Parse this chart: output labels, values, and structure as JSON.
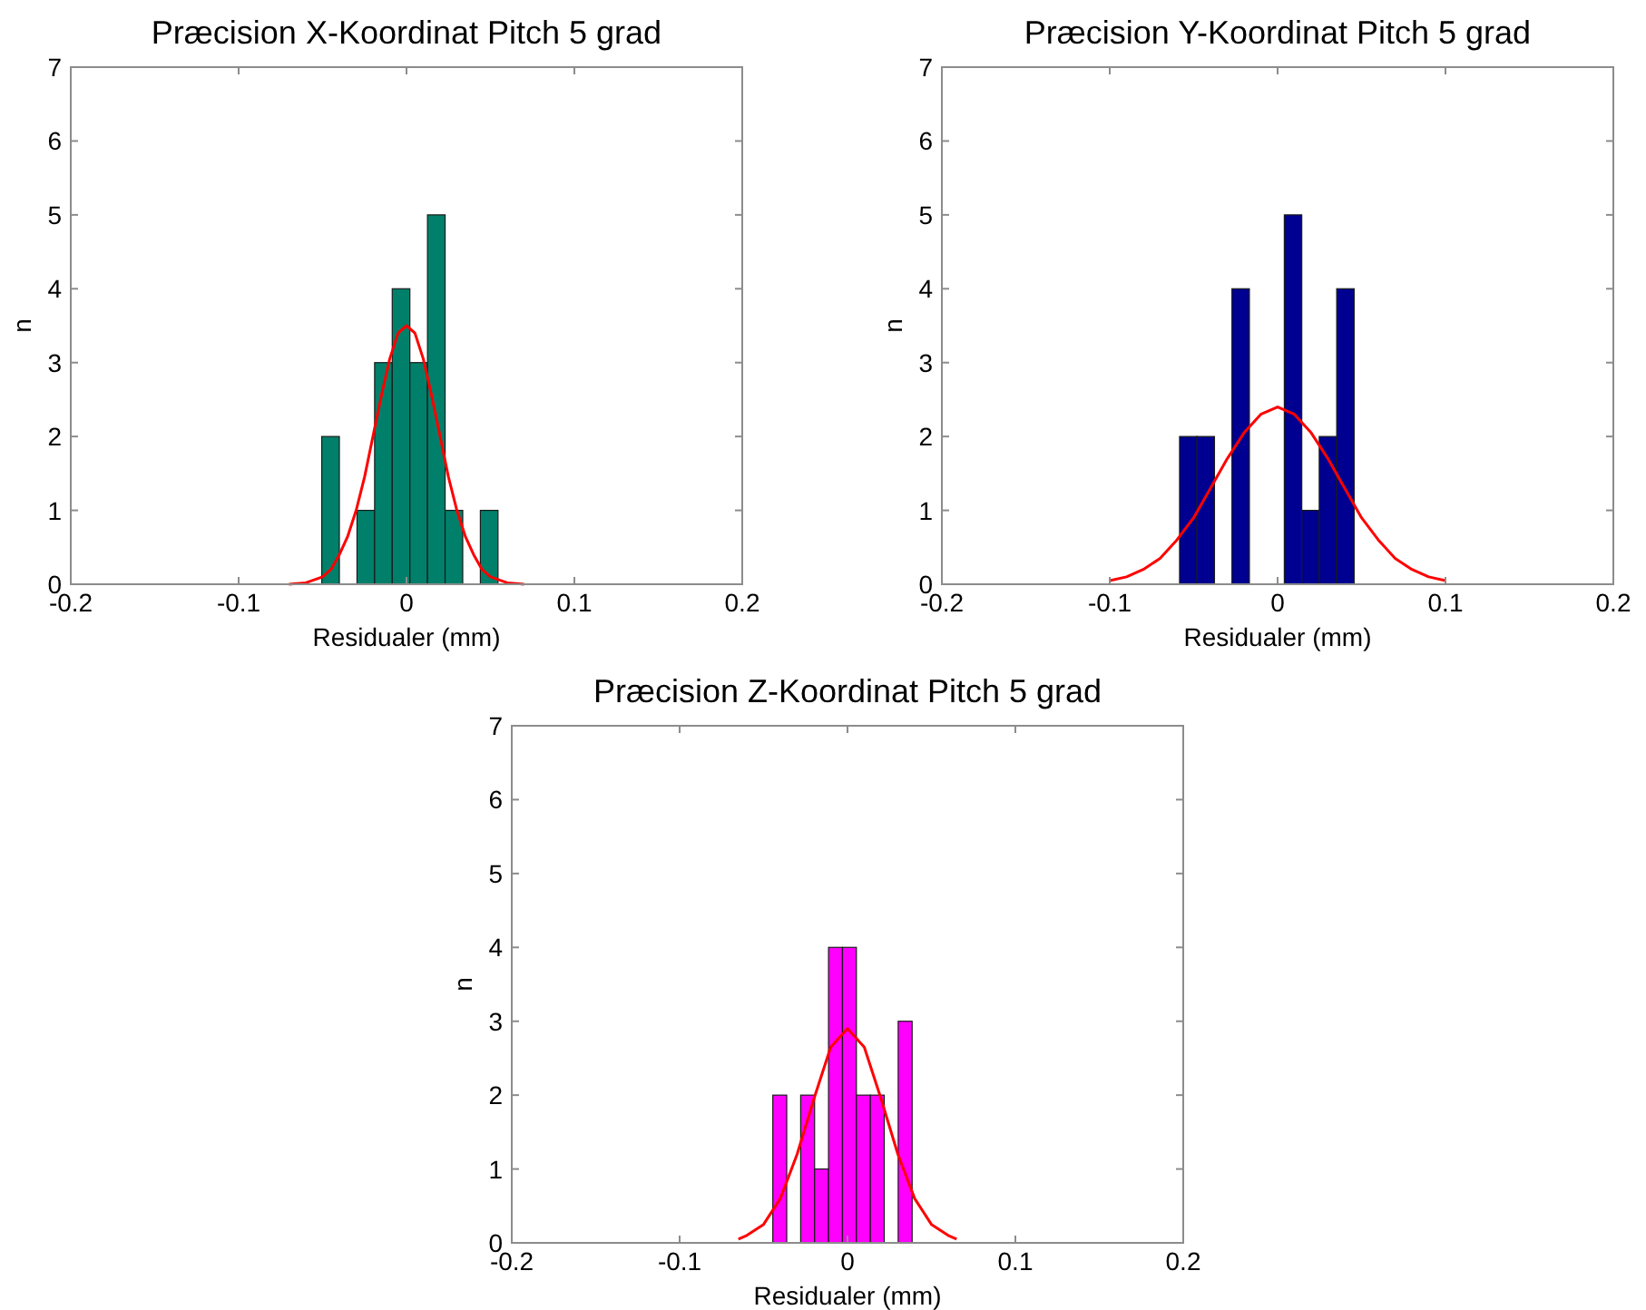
{
  "chart_data": [
    {
      "type": "histogram",
      "title": "Præcision X-Koordinat Pitch 5 grad",
      "xlabel": "Residualer (mm)",
      "ylabel": "n",
      "bins": [
        -0.0505,
        -0.04,
        -0.0295,
        -0.019,
        -0.0085,
        0.002,
        0.0125,
        0.023,
        0.0335,
        0.044,
        0.0545
      ],
      "values": [
        2,
        0,
        1,
        3,
        4,
        3,
        5,
        1,
        0,
        1
      ],
      "color": "#00806a",
      "xlim": [
        -0.2,
        0.2
      ],
      "ylim": [
        0,
        7
      ],
      "xticks": [
        -0.2,
        -0.1,
        0,
        0.1,
        0.2
      ],
      "yticks": [
        0,
        1,
        2,
        3,
        4,
        5,
        6,
        7
      ],
      "grid": false,
      "series": [
        {
          "type": "line",
          "color": "#ff0000",
          "x": [
            -0.07,
            -0.06,
            -0.05,
            -0.045,
            -0.04,
            -0.035,
            -0.03,
            -0.025,
            -0.02,
            -0.015,
            -0.01,
            -0.005,
            0,
            0.005,
            0.01,
            0.015,
            0.02,
            0.025,
            0.03,
            0.035,
            0.04,
            0.045,
            0.05,
            0.06,
            0.07
          ],
          "values": [
            0,
            0.02,
            0.1,
            0.2,
            0.4,
            0.65,
            1.0,
            1.45,
            2.0,
            2.55,
            3.05,
            3.4,
            3.5,
            3.4,
            3.05,
            2.55,
            2.0,
            1.45,
            1.0,
            0.65,
            0.4,
            0.2,
            0.1,
            0.02,
            0
          ]
        }
      ]
    },
    {
      "type": "histogram",
      "title": "Præcision Y-Koordinat Pitch 5 grad",
      "xlabel": "Residualer (mm)",
      "ylabel": "n",
      "bins": [
        -0.0584,
        -0.048,
        -0.0376,
        -0.0272,
        -0.0168,
        -0.0064,
        0.004,
        0.0144,
        0.0248,
        0.0352,
        0.0456
      ],
      "values": [
        2,
        2,
        0,
        4,
        0,
        0,
        5,
        1,
        2,
        4
      ],
      "color": "#000090",
      "xlim": [
        -0.2,
        0.2
      ],
      "ylim": [
        0,
        7
      ],
      "xticks": [
        -0.2,
        -0.1,
        0,
        0.1,
        0.2
      ],
      "yticks": [
        0,
        1,
        2,
        3,
        4,
        5,
        6,
        7
      ],
      "grid": false,
      "series": [
        {
          "type": "line",
          "color": "#ff0000",
          "x": [
            -0.1,
            -0.09,
            -0.08,
            -0.07,
            -0.06,
            -0.05,
            -0.04,
            -0.03,
            -0.02,
            -0.01,
            0,
            0.01,
            0.02,
            0.03,
            0.04,
            0.05,
            0.06,
            0.07,
            0.08,
            0.09,
            0.1
          ],
          "values": [
            0.05,
            0.1,
            0.2,
            0.35,
            0.6,
            0.9,
            1.3,
            1.7,
            2.05,
            2.3,
            2.4,
            2.3,
            2.05,
            1.7,
            1.3,
            0.9,
            0.6,
            0.35,
            0.2,
            0.1,
            0.05
          ]
        }
      ]
    },
    {
      "type": "histogram",
      "title": "Præcision Z-Koordinat Pitch 5 grad",
      "xlabel": "Residualer (mm)",
      "ylabel": "n",
      "bins": [
        -0.0445,
        -0.0362,
        -0.0279,
        -0.0196,
        -0.0113,
        -0.003,
        0.0053,
        0.0136,
        0.0219,
        0.0302,
        0.0385
      ],
      "values": [
        2,
        0,
        2,
        1,
        4,
        4,
        2,
        2,
        0,
        3
      ],
      "color": "#ff00ff",
      "xlim": [
        -0.2,
        0.2
      ],
      "ylim": [
        0,
        7
      ],
      "xticks": [
        -0.2,
        -0.1,
        0,
        0.1,
        0.2
      ],
      "yticks": [
        0,
        1,
        2,
        3,
        4,
        5,
        6,
        7
      ],
      "grid": false,
      "series": [
        {
          "type": "line",
          "color": "#ff0000",
          "x": [
            -0.065,
            -0.06,
            -0.05,
            -0.04,
            -0.03,
            -0.02,
            -0.01,
            0,
            0.01,
            0.02,
            0.03,
            0.04,
            0.05,
            0.06,
            0.065
          ],
          "values": [
            0.05,
            0.1,
            0.25,
            0.6,
            1.2,
            1.95,
            2.65,
            2.9,
            2.65,
            1.95,
            1.2,
            0.6,
            0.25,
            0.1,
            0.05
          ]
        }
      ]
    }
  ]
}
